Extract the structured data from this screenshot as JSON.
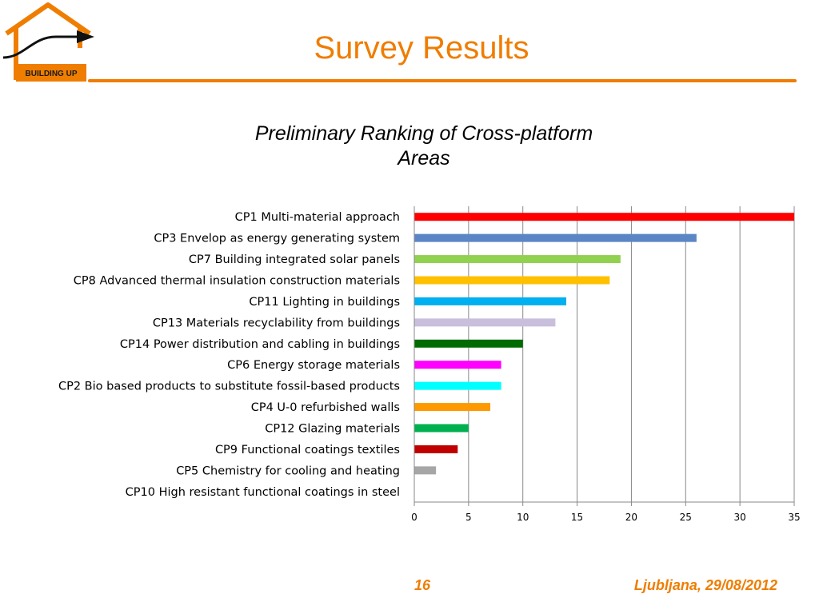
{
  "logo": {
    "text": "BUILDING UP",
    "icon": "house-arrow-icon",
    "color": "#ef7d00"
  },
  "slide": {
    "title": "Survey Results",
    "page_number": "16",
    "footer_place": "Ljubljana, 29/08/2012"
  },
  "chart_data": {
    "type": "bar",
    "orientation": "horizontal",
    "title": "Preliminary Ranking of Cross-platform Areas",
    "title_lines": [
      "Preliminary Ranking of Cross-platform",
      "Areas"
    ],
    "xlabel": "",
    "ylabel": "",
    "xlim": [
      0,
      35
    ],
    "xticks": [
      0,
      5,
      10,
      15,
      20,
      25,
      30,
      35
    ],
    "grid": "vertical",
    "legend": "none",
    "categories": [
      "CP1 Multi-material approach",
      "CP3 Envelop as energy generating system",
      "CP7 Building integrated solar panels",
      "CP8 Advanced thermal insulation construction materials",
      "CP11 Lighting in buildings",
      "CP13 Materials recyclability from buildings",
      "CP14 Power distribution and cabling in buildings",
      "CP6 Energy storage materials",
      "CP2 Bio based products to substitute fossil-based products",
      "CP4 U-0 refurbished walls",
      "CP12 Glazing materials",
      "CP9 Functional coatings textiles",
      "CP5 Chemistry for cooling and heating",
      "CP10 High resistant functional coatings in steel"
    ],
    "values": [
      35,
      26,
      19,
      18,
      14,
      13,
      10,
      8,
      8,
      7,
      5,
      4,
      2,
      0
    ],
    "colors": [
      "#ff0000",
      "#5b86c6",
      "#92d050",
      "#ffc000",
      "#00b0f0",
      "#c9bfdc",
      "#006b00",
      "#ff00ff",
      "#00ffff",
      "#ff9900",
      "#00b050",
      "#c00000",
      "#a6a6a6",
      "#ffffff"
    ]
  }
}
